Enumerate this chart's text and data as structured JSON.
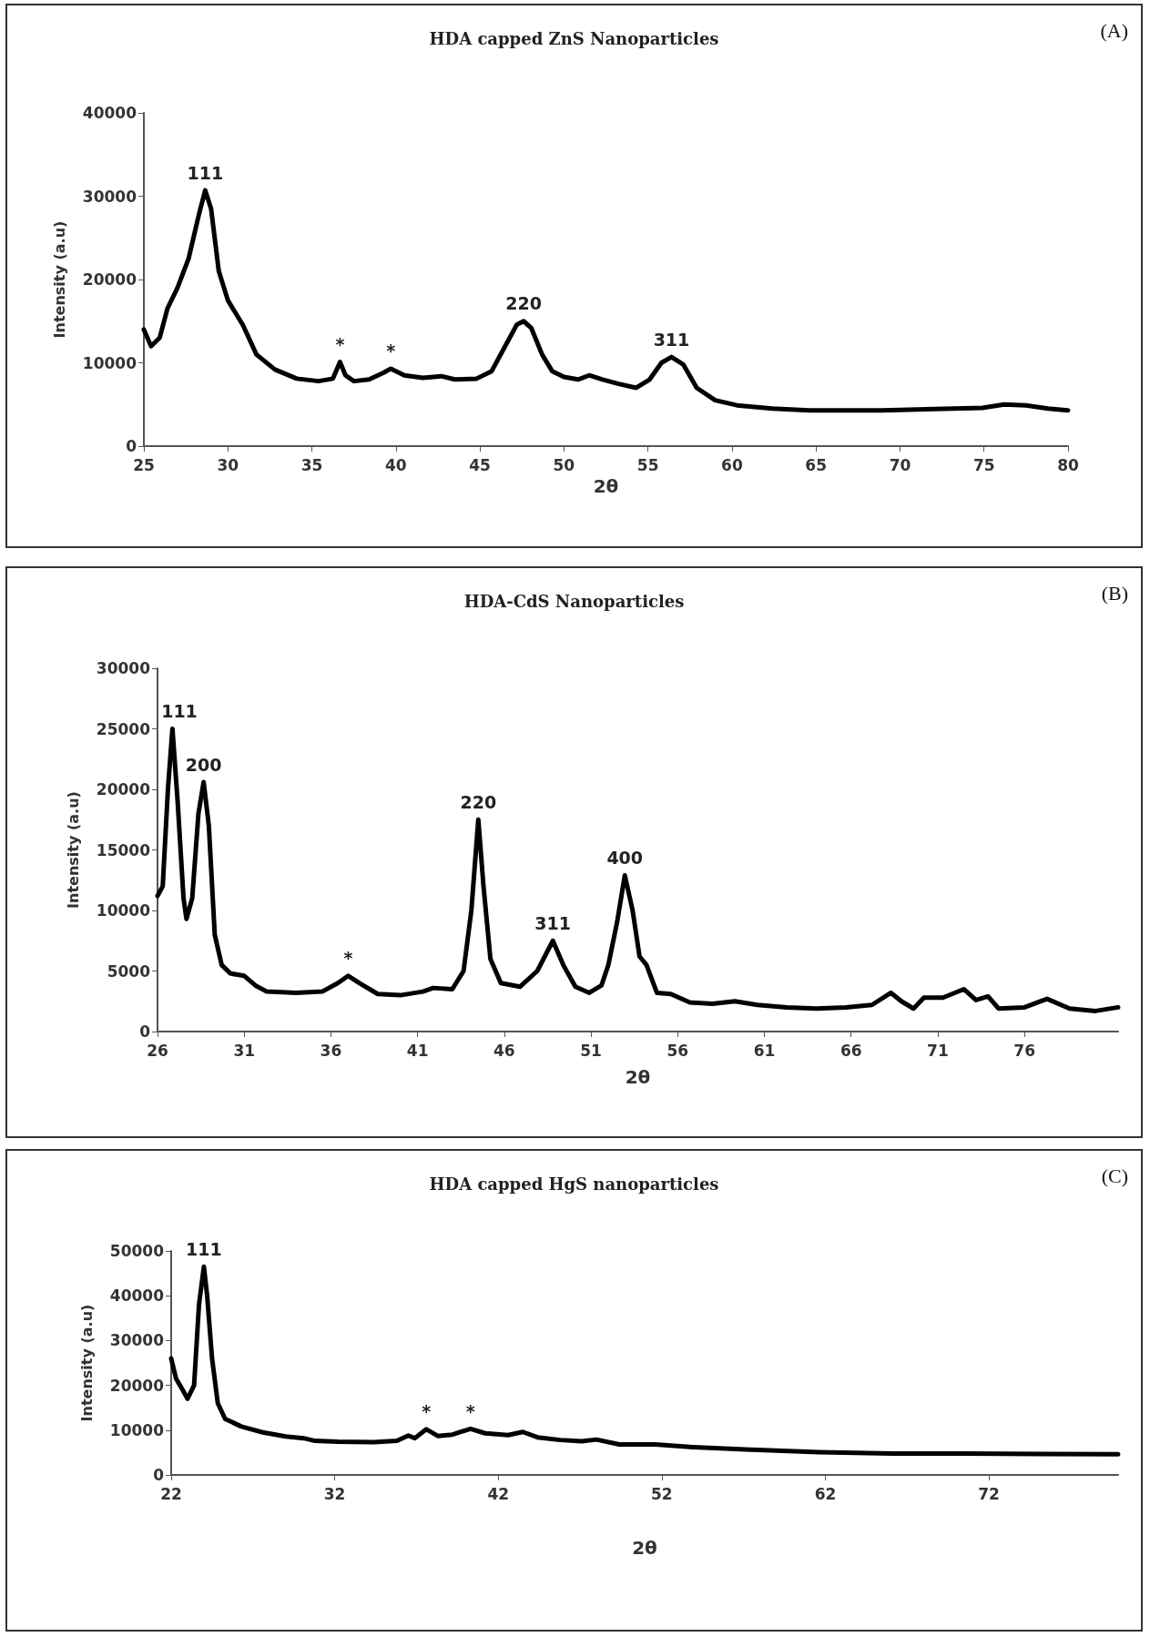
{
  "chart_data": [
    {
      "type": "line",
      "title": "HDA capped ZnS Nanoparticles",
      "xlabel": "2θ",
      "ylabel": "Intensity (a.u)",
      "grid": false,
      "marker": "none",
      "line_style": "solid",
      "xlim": [
        25,
        80
      ],
      "xticks": [
        25,
        30,
        35,
        40,
        45,
        50,
        55,
        60,
        65,
        70,
        75,
        80
      ],
      "ylim": [
        0,
        40000
      ],
      "yticks": [
        0,
        10000,
        20000,
        30000,
        40000
      ],
      "annotations": [
        "(A)",
        {
          "text": "111",
          "x": 28.65,
          "y": 30700
        },
        {
          "text": "220",
          "x": 47.6,
          "y": 15000
        },
        {
          "text": "311",
          "x": 56.4,
          "y": 10700
        },
        {
          "text": "*",
          "x": 36.67,
          "y": 10100
        },
        {
          "text": "*",
          "x": 39.7,
          "y": 9300
        }
      ],
      "series": [
        {
          "color": "#000000",
          "x": [
            25.0,
            25.43,
            25.94,
            26.4,
            27.0,
            27.66,
            28.3,
            28.65,
            29.0,
            29.46,
            30.0,
            30.9,
            31.7,
            32.8,
            34.1,
            35.4,
            36.25,
            36.67,
            37.0,
            37.5,
            38.4,
            39.25,
            39.7,
            40.5,
            41.6,
            42.7,
            43.5,
            44.8,
            45.7,
            46.5,
            47.2,
            47.6,
            48.05,
            48.7,
            49.3,
            50.0,
            50.84,
            51.5,
            52.3,
            53.2,
            54.3,
            55.1,
            55.8,
            56.4,
            57.1,
            57.9,
            59.0,
            60.3,
            62.4,
            64.6,
            68.9,
            73.2,
            74.9,
            76.2,
            77.5,
            78.8,
            80.0
          ],
          "values": [
            14000,
            12000,
            13000,
            16500,
            19000,
            22500,
            28000,
            30700,
            28500,
            21000,
            17500,
            14500,
            11000,
            9200,
            8100,
            7800,
            8100,
            10100,
            8500,
            7800,
            8000,
            8800,
            9300,
            8500,
            8200,
            8400,
            8000,
            8100,
            9000,
            12000,
            14600,
            15000,
            14200,
            11000,
            9000,
            8300,
            8000,
            8500,
            8000,
            7500,
            7000,
            8000,
            10000,
            10700,
            9800,
            7000,
            5500,
            4900,
            4500,
            4300,
            4300,
            4500,
            4600,
            5000,
            4900,
            4500,
            4300
          ]
        }
      ]
    },
    {
      "type": "line",
      "title": "HDA-CdS Nanoparticles",
      "xlabel": "2θ",
      "ylabel": "Intensity (a.u)",
      "grid": false,
      "marker": "none",
      "line_style": "solid",
      "xlim": [
        26,
        81.4
      ],
      "xticks": [
        26,
        31,
        36,
        41,
        46,
        51,
        56,
        61,
        66,
        71,
        76
      ],
      "ylim": [
        0,
        30000
      ],
      "yticks": [
        0,
        5000,
        10000,
        15000,
        20000,
        25000,
        30000
      ],
      "annotations": [
        "(B)",
        {
          "text": "111",
          "x": 26.86,
          "y": 25000
        },
        {
          "text": "200",
          "x": 28.66,
          "y": 20600
        },
        {
          "text": "220",
          "x": 44.5,
          "y": 17500
        },
        {
          "text": "311",
          "x": 48.8,
          "y": 7500
        },
        {
          "text": "400",
          "x": 52.95,
          "y": 12900
        },
        {
          "text": "*",
          "x": 37.0,
          "y": 4600
        }
      ],
      "series": [
        {
          "color": "#000000",
          "x": [
            26.0,
            26.3,
            26.6,
            26.86,
            27.16,
            27.5,
            27.67,
            28.0,
            28.36,
            28.66,
            28.96,
            29.3,
            29.7,
            30.2,
            31.0,
            31.65,
            32.3,
            34.0,
            35.5,
            36.4,
            37.0,
            37.65,
            38.7,
            40.0,
            41.3,
            41.9,
            43.0,
            43.65,
            44.1,
            44.5,
            44.8,
            45.2,
            45.8,
            46.9,
            47.9,
            48.8,
            49.4,
            50.1,
            50.9,
            51.6,
            52.0,
            52.5,
            52.95,
            53.4,
            53.8,
            54.2,
            54.8,
            55.6,
            56.7,
            58.0,
            59.3,
            60.6,
            62.3,
            64.0,
            65.7,
            67.2,
            68.3,
            68.9,
            69.6,
            70.2,
            71.3,
            72.5,
            73.2,
            73.9,
            74.5,
            76.0,
            77.3,
            78.6,
            80.1,
            81.4
          ],
          "values": [
            11200,
            12000,
            20000,
            25000,
            19000,
            11000,
            9300,
            11000,
            18000,
            20600,
            17000,
            8000,
            5500,
            4800,
            4600,
            3800,
            3300,
            3200,
            3300,
            4000,
            4600,
            4000,
            3100,
            3000,
            3300,
            3600,
            3500,
            5000,
            10000,
            17500,
            12000,
            6000,
            4000,
            3700,
            5000,
            7500,
            5500,
            3700,
            3200,
            3800,
            5500,
            9000,
            12900,
            10000,
            6200,
            5500,
            3200,
            3100,
            2400,
            2300,
            2500,
            2200,
            2000,
            1900,
            2000,
            2200,
            3200,
            2500,
            1900,
            2800,
            2800,
            3500,
            2600,
            2900,
            1900,
            2000,
            2700,
            1900,
            1700,
            2000
          ]
        }
      ]
    },
    {
      "type": "line",
      "title": "HDA capped HgS nanoparticles",
      "xlabel": "2θ",
      "ylabel": "Intensity (a.u)",
      "grid": false,
      "marker": "none",
      "line_style": "solid",
      "xlim": [
        22,
        79.9
      ],
      "xticks": [
        22,
        32,
        42,
        52,
        62,
        72
      ],
      "ylim": [
        0,
        50000
      ],
      "yticks": [
        0,
        10000,
        20000,
        30000,
        40000,
        50000
      ],
      "annotations": [
        "(C)",
        {
          "text": "111",
          "x": 24.0,
          "y": 46500
        },
        {
          "text": "*",
          "x": 37.6,
          "y": 10200
        },
        {
          "text": "*",
          "x": 40.3,
          "y": 10300
        }
      ],
      "series": [
        {
          "color": "#000000",
          "x": [
            22.0,
            22.3,
            22.7,
            23.0,
            23.4,
            23.7,
            24.0,
            24.2,
            24.5,
            24.85,
            25.3,
            26.3,
            27.6,
            29.0,
            30.1,
            30.8,
            32.2,
            34.4,
            35.8,
            36.5,
            36.9,
            37.6,
            38.3,
            39.2,
            40.3,
            41.2,
            42.6,
            43.5,
            44.4,
            45.8,
            47.1,
            48.0,
            49.4,
            51.6,
            53.9,
            57.1,
            61.6,
            66.1,
            70.6,
            75.2,
            79.9
          ],
          "values": [
            26000,
            21500,
            19000,
            17000,
            20000,
            38000,
            46500,
            40000,
            26000,
            16000,
            12500,
            10800,
            9500,
            8600,
            8200,
            7600,
            7400,
            7300,
            7600,
            8800,
            8200,
            10200,
            8700,
            9000,
            10300,
            9300,
            8900,
            9600,
            8400,
            7800,
            7500,
            7900,
            6800,
            6800,
            6200,
            5700,
            5100,
            4800,
            4800,
            4700,
            4600
          ]
        }
      ]
    }
  ]
}
